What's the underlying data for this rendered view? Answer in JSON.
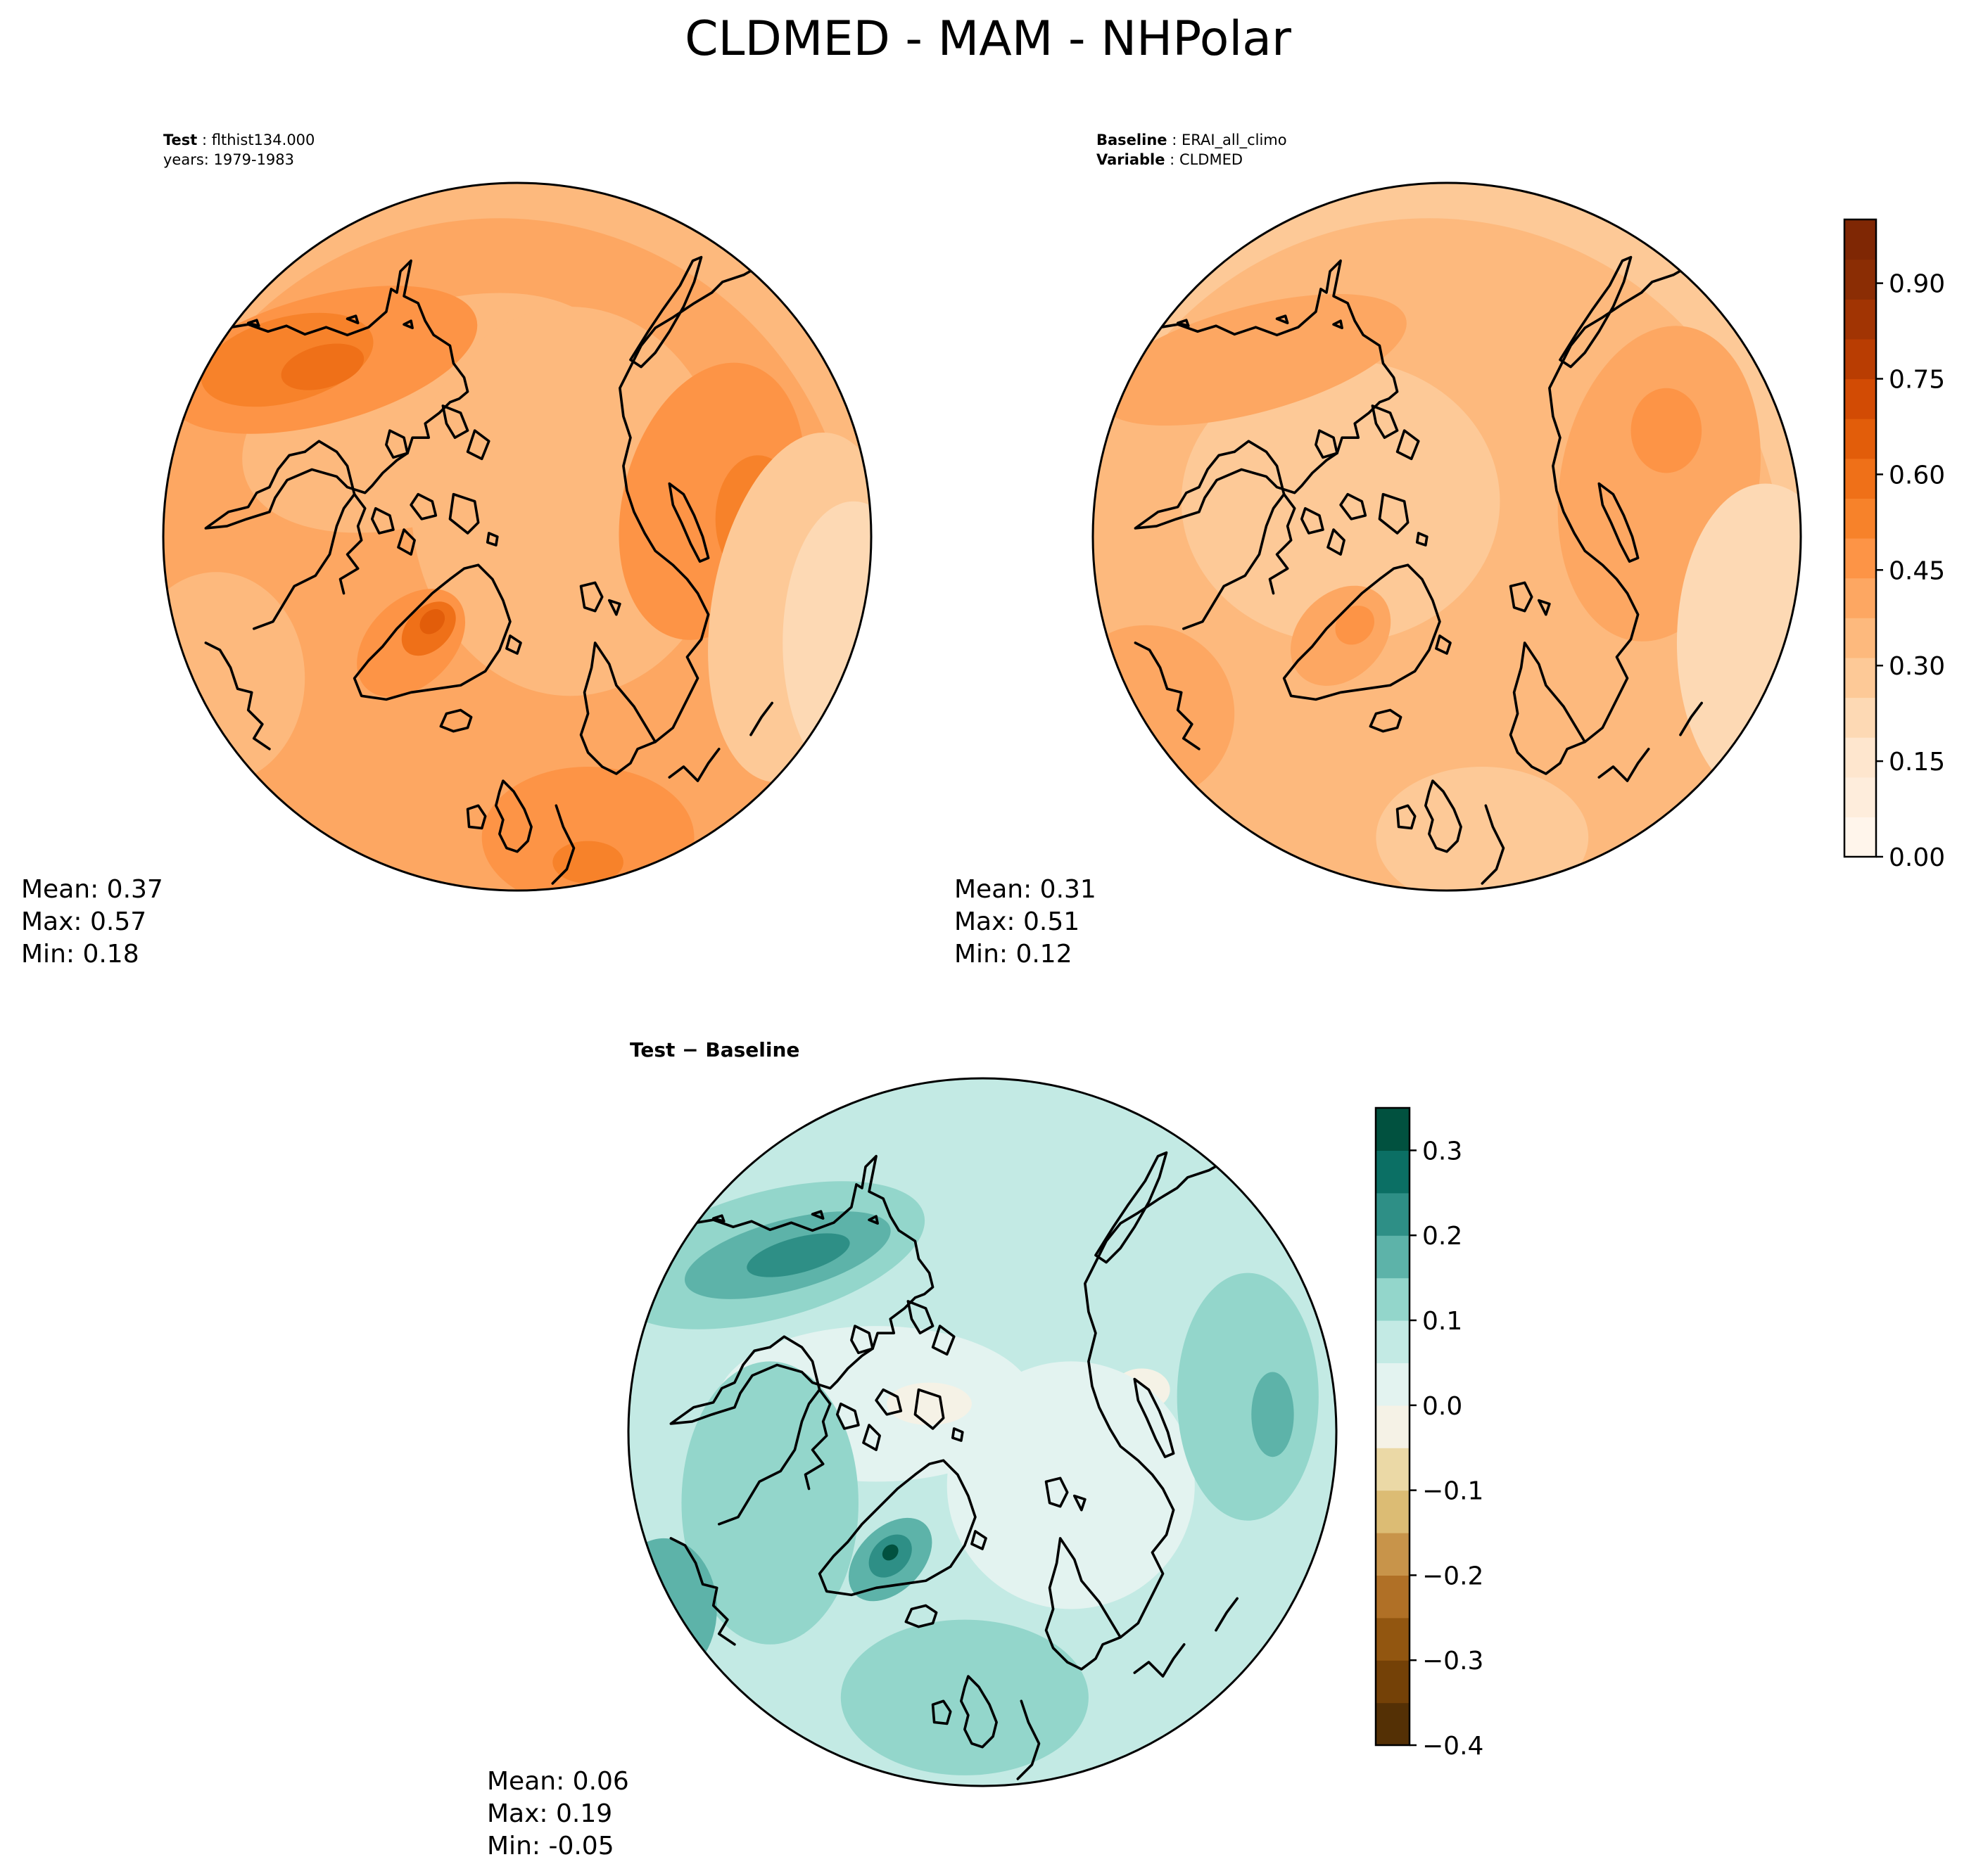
{
  "figure": {
    "title": "CLDMED - MAM - NHPolar"
  },
  "colors": {
    "test_palette": [
      "#fff5eb",
      "#feeddc",
      "#fee6ce",
      "#fdd9b4",
      "#fdc997",
      "#fdb97d",
      "#fda762",
      "#fd9446",
      "#f7822a",
      "#ef7018",
      "#e25d0a",
      "#d24b04",
      "#b93d02",
      "#a13403",
      "#8b2d04",
      "#7f2704"
    ],
    "diff_palette": [
      "#543005",
      "#744107",
      "#925610",
      "#b07026",
      "#c8944a",
      "#dcbc74",
      "#ebd9a6",
      "#f6eace",
      "#f5f2e6",
      "#e3f3f0",
      "#c3eae4",
      "#93d6cb",
      "#5db3a9",
      "#2e8f86",
      "#0b6f64",
      "#01513f"
    ]
  },
  "panels": [
    {
      "id": "test",
      "header": [
        {
          "key": "Test",
          "sep": ":",
          "value": "flthist134.000"
        },
        {
          "key": "",
          "sep": "",
          "value": "years: 1979-1983"
        }
      ],
      "stats": {
        "mean": "Mean:  0.37",
        "max": "Max:  0.57",
        "min": "Min:  0.18"
      }
    },
    {
      "id": "baseline",
      "header": [
        {
          "key": "Baseline",
          "sep": ":",
          "value": "ERAI_all_climo"
        },
        {
          "key": "Variable",
          "sep": ":",
          "value": "CLDMED"
        }
      ],
      "stats": {
        "mean": "Mean:  0.31",
        "max": "Max:  0.51",
        "min": "Min:  0.12"
      }
    },
    {
      "id": "difference",
      "header": [
        {
          "key": "Test − Baseline",
          "sep": "",
          "value": ""
        }
      ],
      "stats": {
        "mean": "Mean:  0.06",
        "max": "Max:  0.19",
        "min": "Min: -0.05"
      }
    }
  ],
  "chart_data": [
    {
      "type": "heatmap",
      "projection": "north-polar-stereographic",
      "variable": "CLDMED",
      "season": "MAM",
      "region": "NHPolar",
      "case": "flthist134.000",
      "mean": 0.37,
      "max": 0.57,
      "min": 0.18
    },
    {
      "type": "heatmap",
      "projection": "north-polar-stereographic",
      "variable": "CLDMED",
      "season": "MAM",
      "region": "NHPolar",
      "case": "ERAI_all_climo",
      "mean": 0.31,
      "max": 0.51,
      "min": 0.12,
      "colorbar": {
        "range": [
          0,
          1
        ],
        "levels": 16,
        "ticks": [
          "0.00",
          "0.15",
          "0.30",
          "0.45",
          "0.60",
          "0.75",
          "0.90"
        ],
        "tick_values": [
          0,
          0.15,
          0.3,
          0.45,
          0.6,
          0.75,
          0.9
        ]
      }
    },
    {
      "type": "heatmap",
      "projection": "north-polar-stereographic",
      "variable": "CLDMED difference",
      "mean": 0.06,
      "max": 0.19,
      "min": -0.05,
      "colorbar": {
        "range": [
          -0.4,
          0.35
        ],
        "levels": 15,
        "ticks": [
          "−0.4",
          "−0.3",
          "−0.2",
          "−0.1",
          "0.0",
          "0.1",
          "0.2",
          "0.3"
        ],
        "tick_values": [
          -0.4,
          -0.3,
          -0.2,
          -0.1,
          0.0,
          0.1,
          0.2,
          0.3
        ]
      }
    }
  ]
}
